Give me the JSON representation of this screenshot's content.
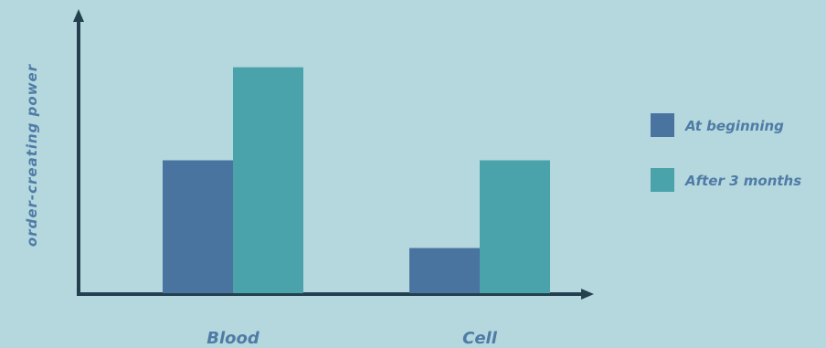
{
  "chart_data": {
    "type": "bar",
    "title": "",
    "xlabel": "",
    "ylabel": "order-creating power",
    "categories": [
      "Blood",
      "Cell"
    ],
    "series": [
      {
        "name": "At beginning",
        "values": [
          5,
          1.7
        ]
      },
      {
        "name": "After 3 months",
        "values": [
          8.5,
          5
        ]
      }
    ],
    "ylim": [
      0,
      10
    ],
    "grid": false,
    "legend_position": "right",
    "colors": [
      "#4a74a0",
      "#4aa3aa"
    ]
  }
}
